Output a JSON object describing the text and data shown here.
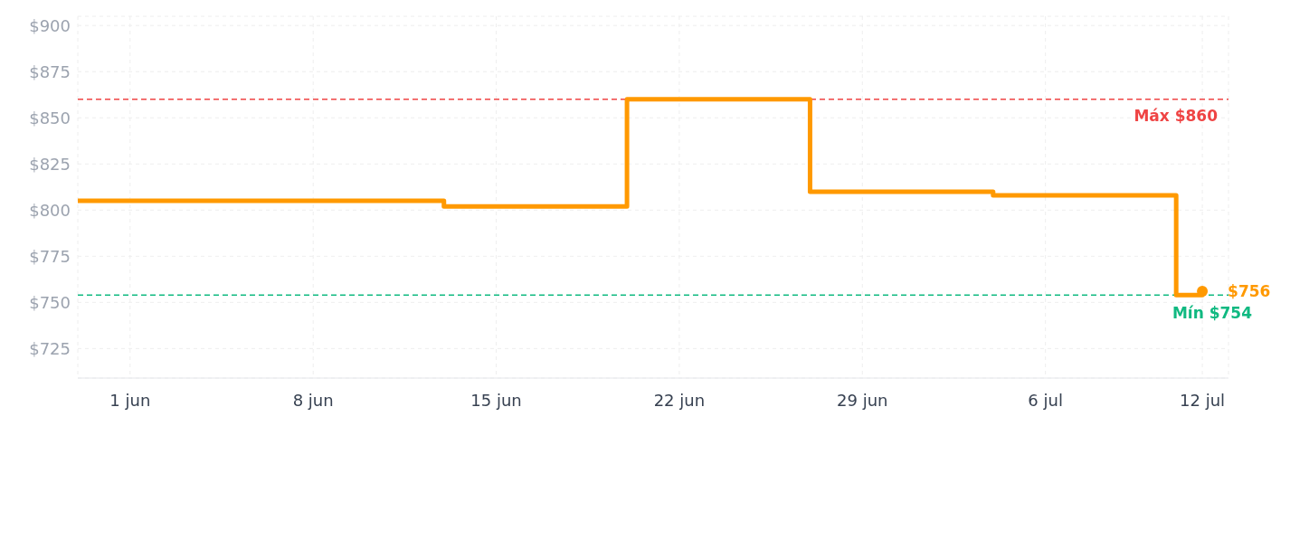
{
  "chart_data": {
    "type": "step",
    "x": [
      "--05-30",
      "--06-13",
      "--06-20",
      "--06-27",
      "--07-04",
      "--07-11",
      "--07-12"
    ],
    "series": [
      {
        "color": "#ff9900",
        "values": [
          805,
          802,
          860,
          810,
          808,
          754,
          756
        ]
      }
    ],
    "xlim": [
      "--05-30",
      "--07-13"
    ],
    "xticks": [
      {
        "value": "--06-01",
        "label": "1 jun"
      },
      {
        "value": "--06-08",
        "label": "8 jun"
      },
      {
        "value": "--06-15",
        "label": "15 jun"
      },
      {
        "value": "--06-22",
        "label": "22 jun"
      },
      {
        "value": "--06-29",
        "label": "29 jun"
      },
      {
        "value": "--07-06",
        "label": "6 jul"
      },
      {
        "value": "--07-12",
        "label": "12 jul"
      }
    ],
    "ylim": [
      709,
      905
    ],
    "yticks": [
      {
        "value": 725,
        "label": "$725"
      },
      {
        "value": 750,
        "label": "$750"
      },
      {
        "value": 775,
        "label": "$775"
      },
      {
        "value": 800,
        "label": "$800"
      },
      {
        "value": 825,
        "label": "$825"
      },
      {
        "value": 850,
        "label": "$850"
      },
      {
        "value": 875,
        "label": "$875"
      },
      {
        "value": 900,
        "label": "$900"
      }
    ],
    "ref_lines": [
      {
        "axis": "y",
        "value": 860,
        "label": "Máx $860",
        "color": "#ef4444",
        "line_style": "dashed"
      },
      {
        "axis": "y",
        "value": 754,
        "label": "Mín $754",
        "color": "#10b981",
        "line_style": "dashed"
      }
    ],
    "annotations": [
      {
        "text": "$756",
        "x": "--07-12",
        "y": 756
      }
    ],
    "grid": true,
    "marker": "none",
    "line_style": "solid"
  }
}
